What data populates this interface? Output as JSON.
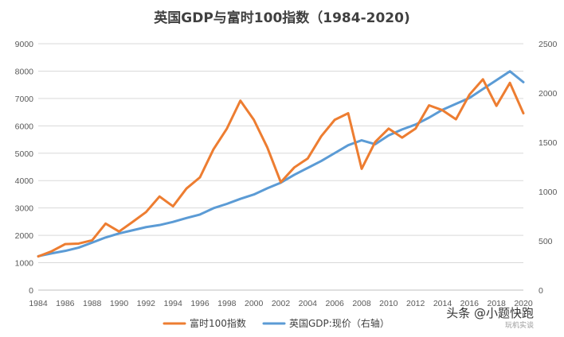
{
  "chart_data": {
    "type": "line",
    "title": "英国GDP与富时100指数（1984-2020)",
    "x": [
      1984,
      1985,
      1986,
      1987,
      1988,
      1989,
      1990,
      1991,
      1992,
      1993,
      1994,
      1995,
      1996,
      1997,
      1998,
      1999,
      2000,
      2001,
      2002,
      2003,
      2004,
      2005,
      2006,
      2007,
      2008,
      2009,
      2010,
      2011,
      2012,
      2013,
      2014,
      2015,
      2016,
      2017,
      2018,
      2019,
      2020
    ],
    "x_ticks": [
      "1984",
      "1986",
      "1988",
      "1990",
      "1992",
      "1994",
      "1996",
      "1998",
      "2000",
      "2002",
      "2004",
      "2006",
      "2008",
      "2010",
      "2012",
      "2014",
      "2016",
      "2018",
      "2020"
    ],
    "y_left_ticks": [
      "0",
      "1000",
      "2000",
      "3000",
      "4000",
      "5000",
      "6000",
      "7000",
      "8000",
      "9000"
    ],
    "y_right_ticks": [
      "0",
      "500",
      "1000",
      "1500",
      "2000",
      "2500"
    ],
    "ylim_left": [
      0,
      9000
    ],
    "ylim_right": [
      0,
      2500
    ],
    "grid": true,
    "legend_position": "bottom",
    "series": [
      {
        "name": "富时100指数",
        "axis": "left",
        "color": "#ED7D31",
        "values": [
          1230,
          1420,
          1680,
          1700,
          1820,
          2430,
          2140,
          2490,
          2850,
          3420,
          3060,
          3710,
          4120,
          5140,
          5900,
          6920,
          6220,
          5210,
          3940,
          4480,
          4810,
          5620,
          6220,
          6460,
          4430,
          5410,
          5900,
          5570,
          5900,
          6750,
          6570,
          6240,
          7140,
          7700,
          6730,
          7570,
          6460
        ]
      },
      {
        "name": "英国GDP:现价（右轴）",
        "axis": "right",
        "color": "#5B9BD5",
        "values": [
          344,
          373,
          398,
          431,
          482,
          534,
          575,
          607,
          639,
          660,
          692,
          731,
          767,
          831,
          875,
          926,
          970,
          1033,
          1090,
          1170,
          1240,
          1310,
          1390,
          1470,
          1520,
          1480,
          1570,
          1630,
          1680,
          1750,
          1830,
          1890,
          1950,
          2040,
          2130,
          2220,
          2110
        ]
      }
    ]
  },
  "watermark": {
    "main": "头条 @小题快跑",
    "sub": "玩机实谈"
  }
}
